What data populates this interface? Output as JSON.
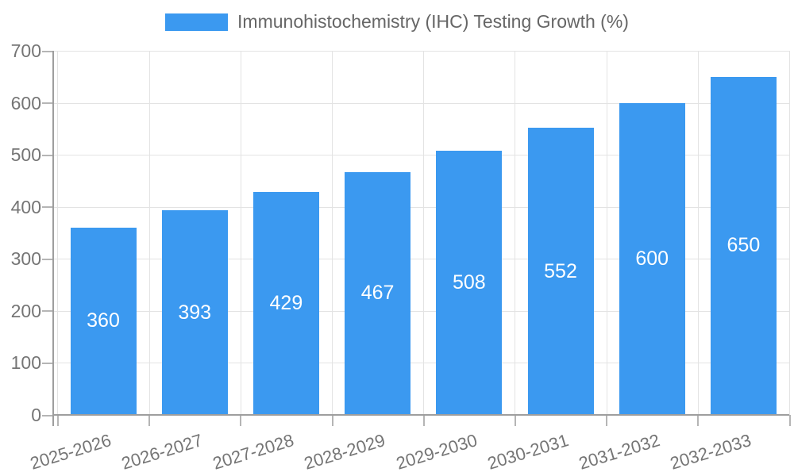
{
  "legend": {
    "label": "Immunohistochemistry (IHC) Testing Growth (%)"
  },
  "chart_data": {
    "type": "bar",
    "title": "Immunohistochemistry (IHC) Testing Growth (%)",
    "categories": [
      "2025-2026",
      "2026-2027",
      "2027-2028",
      "2028-2029",
      "2029-2030",
      "2030-2031",
      "2031-2032",
      "2032-2033"
    ],
    "series": [
      {
        "name": "Immunohistochemistry (IHC) Testing Growth (%)",
        "values": [
          360,
          393,
          429,
          467,
          508,
          552,
          600,
          650
        ]
      }
    ],
    "data_labels_shown": true,
    "xlabel": "",
    "ylabel": "",
    "ylim": [
      0,
      700
    ],
    "yticks": [
      0,
      100,
      200,
      300,
      400,
      500,
      600,
      700
    ],
    "grid": true,
    "legend_position": "top",
    "colors": {
      "bar": "#3b99f0",
      "bar_value_text": "#ffffff",
      "axis_text": "#757575",
      "legend_text": "#666666",
      "gridline": "#e3e3e3",
      "axis_line": "#9e9e9e",
      "tick_mark": "#b5b5b5",
      "background": "#ffffff"
    }
  }
}
